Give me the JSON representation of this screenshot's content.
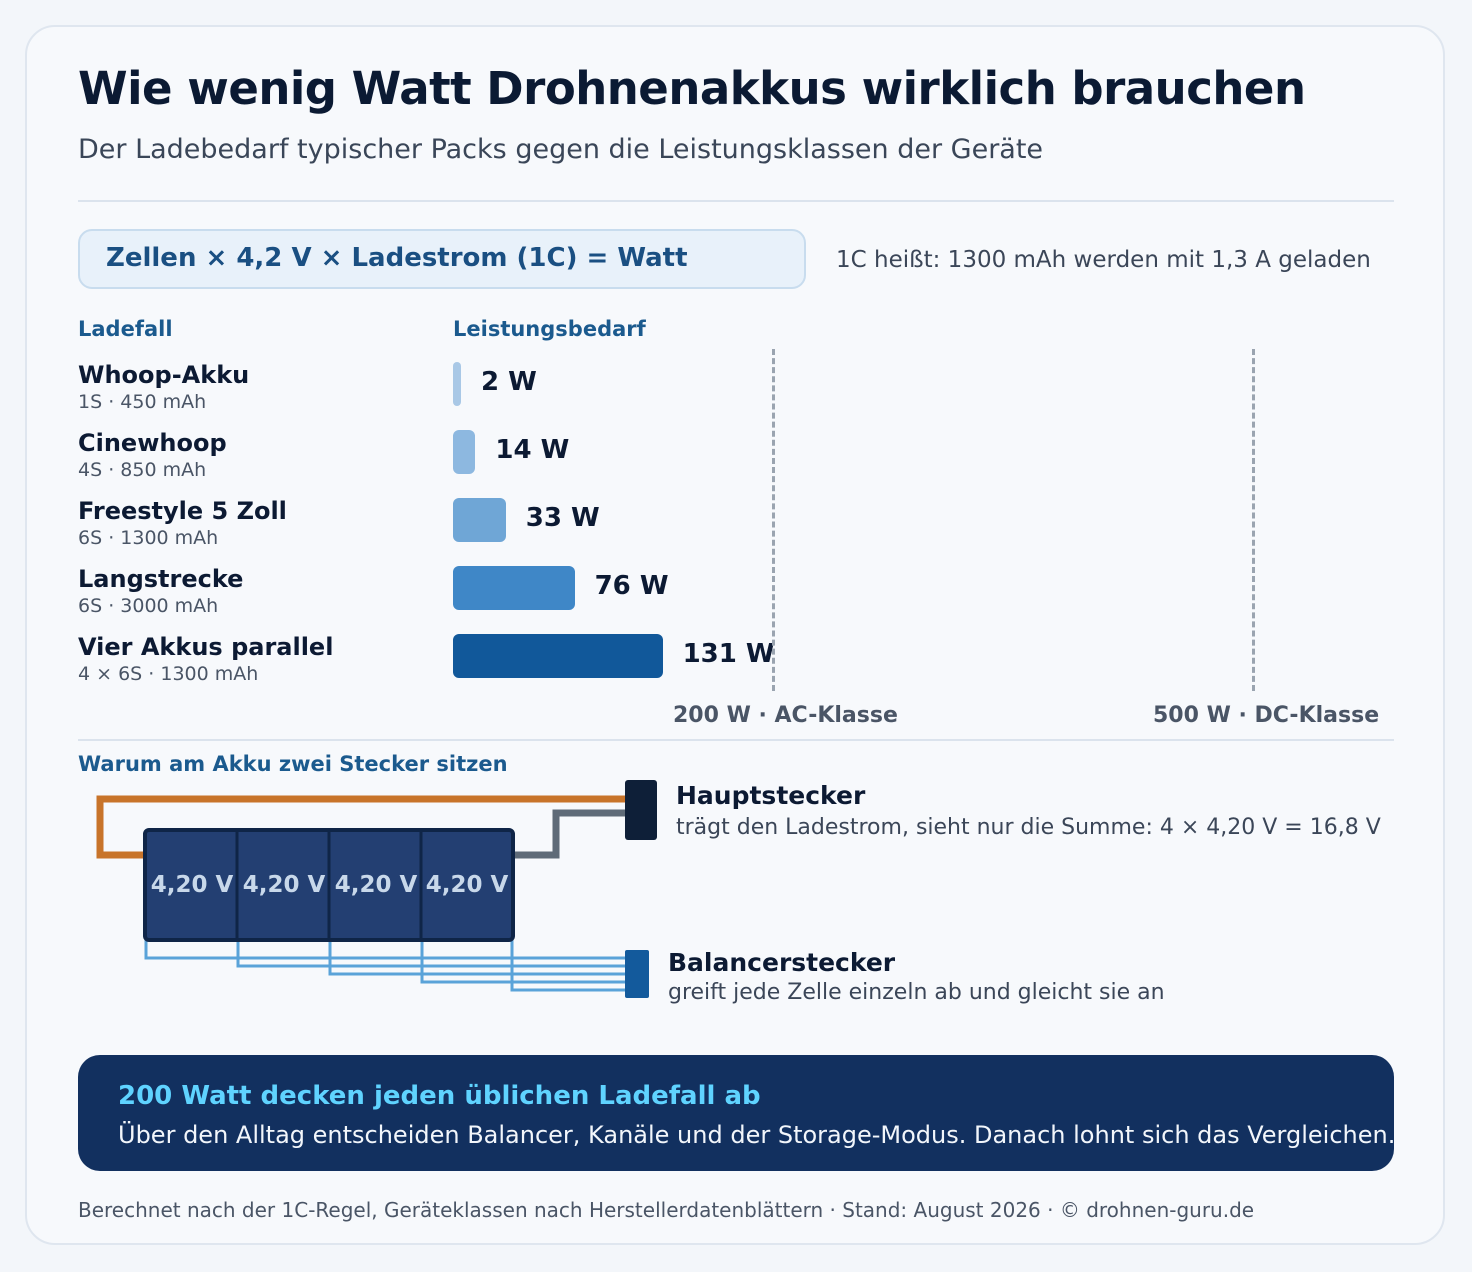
{
  "header": {
    "title": "Wie wenig Watt Drohnenakkus wirklich brauchen",
    "subtitle": "Der Ladebedarf typischer Packs gegen die Leistungsklassen der Geräte"
  },
  "formula": {
    "text": "Zellen × 4,2 V × Ladestrom (1C) = Watt",
    "note": "1C heißt: 1300 mAh werden mit 1,3 A geladen"
  },
  "chart_data": {
    "type": "bar",
    "orientation": "horizontal",
    "column_headers": [
      "Ladefall",
      "Leistungsbedarf"
    ],
    "categories": [
      {
        "name": "Whoop-Akku",
        "detail": "1S · 450 mAh"
      },
      {
        "name": "Cinewhoop",
        "detail": "4S · 850 mAh"
      },
      {
        "name": "Freestyle 5 Zoll",
        "detail": "6S · 1300 mAh"
      },
      {
        "name": "Langstrecke",
        "detail": "6S · 3000 mAh"
      },
      {
        "name": "Vier Akkus parallel",
        "detail": "4 × 6S · 1300 mAh"
      }
    ],
    "values": [
      2,
      14,
      33,
      76,
      131
    ],
    "value_labels": [
      "2 W",
      "14 W",
      "33 W",
      "76 W",
      "131 W"
    ],
    "unit": "W",
    "bar_colors": [
      "#a9c8e6",
      "#8db8e0",
      "#6fa6d6",
      "#3f87c7",
      "#11589a"
    ],
    "reference_lines": [
      {
        "value": 200,
        "label": "200 W · AC-Klasse"
      },
      {
        "value": 500,
        "label": "500 W · DC-Klasse"
      }
    ]
  },
  "connector": {
    "heading": "Warum am Akku zwei Stecker sitzen",
    "cells": [
      "4,20 V",
      "4,20 V",
      "4,20 V",
      "4,20 V"
    ],
    "main_plug": {
      "title": "Hauptstecker",
      "desc": "trägt den Ladestrom, sieht nur die Summe: 4 × 4,20 V = 16,8 V"
    },
    "balance_plug": {
      "title": "Balancerstecker",
      "desc": "greift jede Zelle einzeln ab und gleicht sie an"
    }
  },
  "callout": {
    "title": "200 Watt decken jeden üblichen Ladefall ab",
    "text": "Über den Alltag entscheiden Balancer, Kanäle und der Storage-Modus. Danach lohnt sich das Vergleichen."
  },
  "footer": {
    "text": "Berechnet nach der 1C-Regel, Geräteklassen nach Herstellerdatenblättern · Stand: August 2026 · © drohnen-guru.de"
  }
}
